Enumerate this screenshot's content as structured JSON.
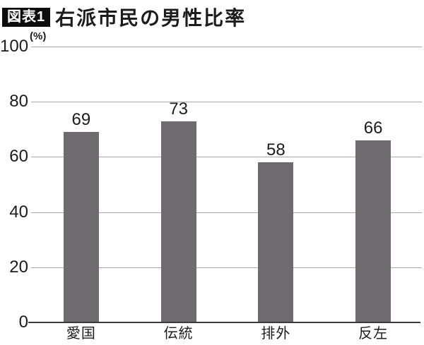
{
  "header": {
    "badge": "図表1",
    "title": "右派市民の男性比率"
  },
  "chart_data": {
    "type": "bar",
    "title": "右派市民の男性比率",
    "figure_label": "図表1",
    "categories": [
      "愛国",
      "伝統",
      "排外",
      "反左"
    ],
    "values": [
      69,
      73,
      58,
      66
    ],
    "unit_label": "(%)",
    "xlabel": "",
    "ylabel": "(%)",
    "ylim": [
      0,
      100
    ],
    "yticks": [
      0,
      20,
      40,
      60,
      80,
      100
    ],
    "grid": true,
    "legend_position": "none",
    "bar_color": "#6e6b6f",
    "gridline_color": "#aaa7ae",
    "axis_color": "#3a3a3a",
    "text_color": "#1c1c1c",
    "badge_bg_color": "#0d0d0d",
    "badge_text_color": "#ffffff"
  }
}
